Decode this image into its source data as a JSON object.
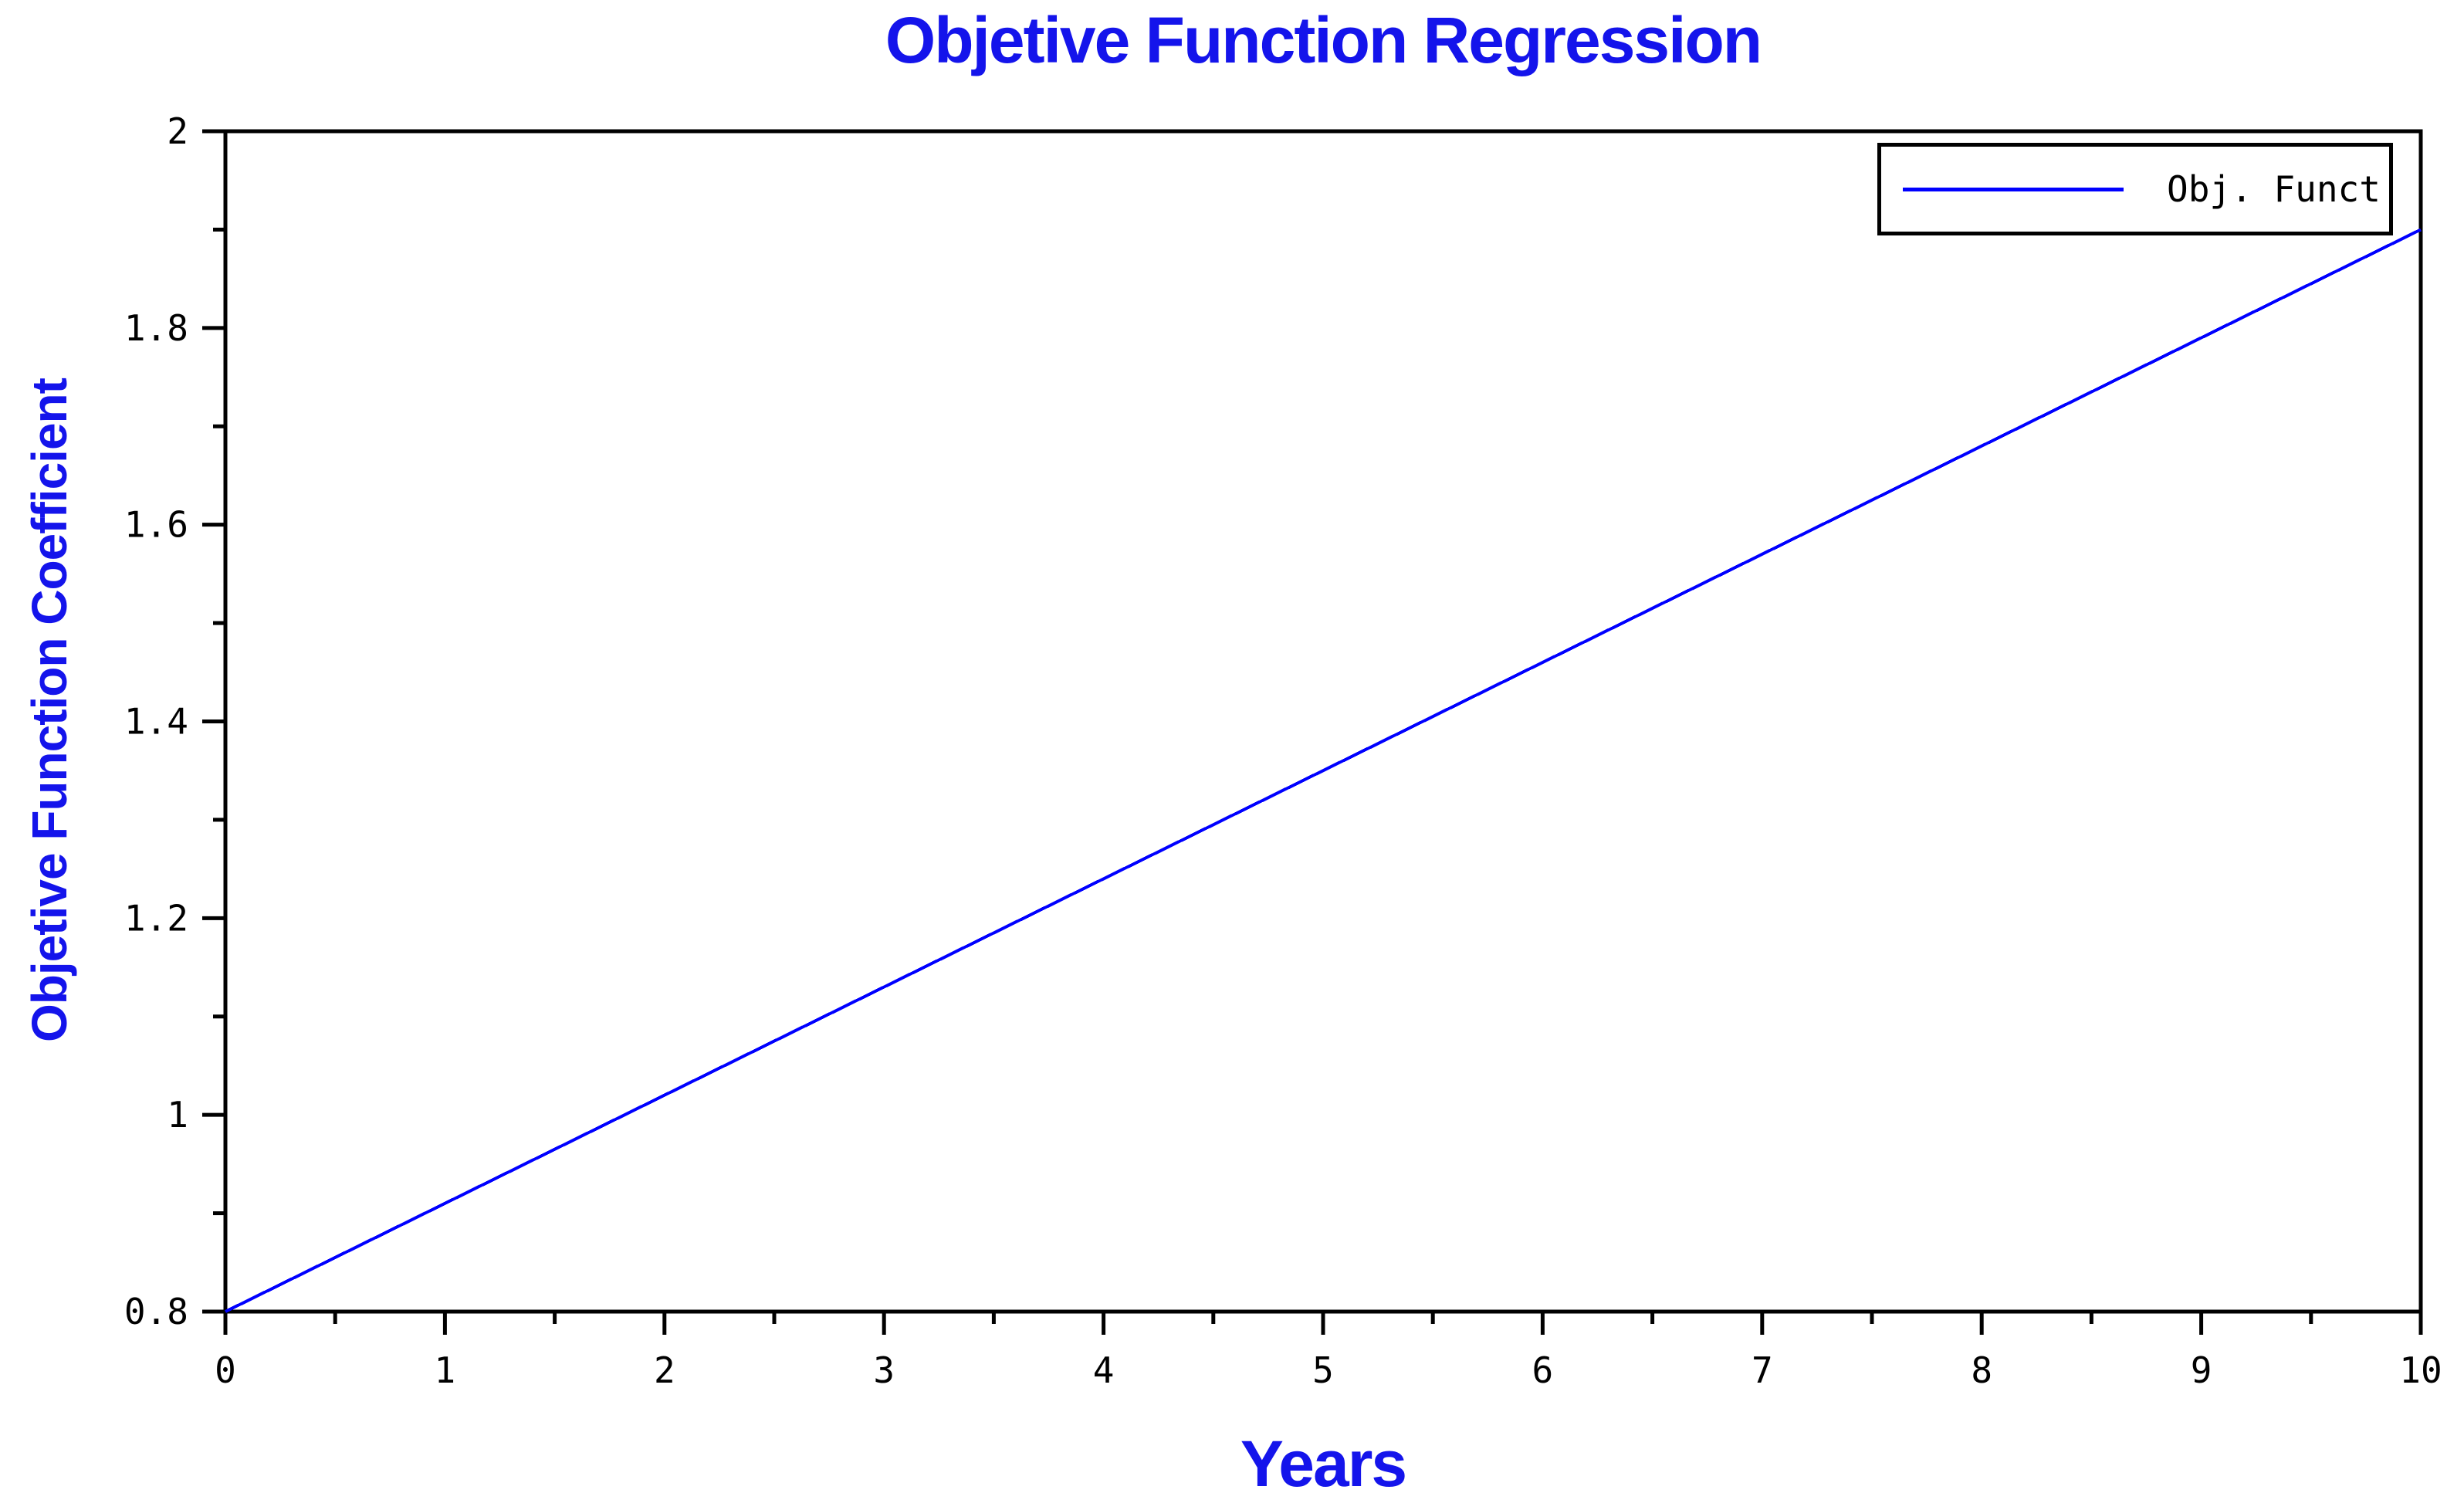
{
  "colors": {
    "background": "#FFFFFF",
    "axis": "#000000",
    "tick_label_text": "#000000",
    "heading_text_blue": "#1414EB",
    "series_line_blue": "#0000FF",
    "legend_border": "#000000",
    "legend_text": "#000000"
  },
  "chart_data": {
    "type": "line",
    "title": "Objetive Function Regression",
    "xlabel": "Years",
    "ylabel": "Objetive Function Coefficient",
    "xlim": [
      0,
      10
    ],
    "ylim": [
      0.8,
      2
    ],
    "grid": false,
    "xticks": {
      "values": [
        0,
        1,
        2,
        3,
        4,
        5,
        6,
        7,
        8,
        9,
        10
      ],
      "labels": [
        "0",
        "1",
        "2",
        "3",
        "4",
        "5",
        "6",
        "7",
        "8",
        "9",
        "10"
      ],
      "minor_step": 0.5
    },
    "yticks": {
      "values": [
        0.8,
        1,
        1.2,
        1.4,
        1.6,
        1.8,
        2
      ],
      "labels": [
        "0.8",
        "1",
        "1.2",
        "1.4",
        "1.6",
        "1.8",
        "2"
      ],
      "minor_step": 0.1
    },
    "series": [
      {
        "name": "Obj. Funct",
        "color": "#0000FF",
        "x": [
          0,
          1,
          2,
          3,
          4,
          5,
          6,
          7,
          8,
          9,
          10
        ],
        "y": [
          0.8,
          0.91,
          1.02,
          1.13,
          1.24,
          1.35,
          1.46,
          1.57,
          1.68,
          1.79,
          1.9
        ]
      }
    ],
    "legend": {
      "position": "top-right",
      "entries": [
        {
          "label": "Obj. Funct",
          "line_color": "#0000FF"
        }
      ]
    }
  }
}
